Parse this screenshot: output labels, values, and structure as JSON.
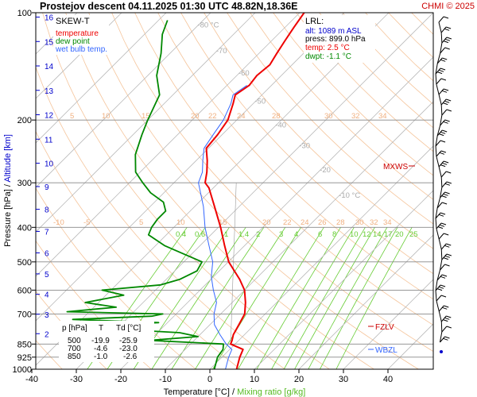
{
  "header": {
    "title": "Prostejov   descent   04.11.2025 01:30 UTC  48.82N,18.36E",
    "credit": "CHMI © 2025"
  },
  "legend": {
    "title": "SKEW-T",
    "items": [
      {
        "label": "temperature",
        "color": "#ee0000"
      },
      {
        "label": "dew point",
        "color": "#008800"
      },
      {
        "label": "wet bulb temp.",
        "color": "#3366ff"
      }
    ]
  },
  "lrl": {
    "title": "LRL:",
    "alt": "alt: 1089 m ASL",
    "press": "press: 899.0 hPa",
    "temp": "temp: 2.5 °C",
    "dwpt": "dwpt: -1.1 °C"
  },
  "markers": {
    "mxws": "MXWS",
    "fzlv": "FZLV",
    "wbzl": "WBZL"
  },
  "table": {
    "header": [
      "p [hPa]",
      "T",
      "Td [°C]"
    ],
    "rows": [
      [
        "500",
        "-19.9",
        "-25.9"
      ],
      [
        "700",
        "-4.6",
        "-23.0"
      ],
      [
        "850",
        "-1.0",
        "-2.6"
      ]
    ]
  },
  "axes": {
    "y_label_left": "Pressure [hPa]",
    "y_label_sep": " / ",
    "y_label_right": "Altitude [km]",
    "x_label_left": "Temperature [°C]",
    "x_label_sep": " / ",
    "x_label_right": "Mixing ratio [g/kg]"
  },
  "colors": {
    "temperature": "#ee0000",
    "dewpoint": "#008800",
    "wetbulb": "#3366ff",
    "isotherm": "#bbbbbb",
    "dry_adiabat": "#f5c49a",
    "mixing_ratio": "#66cc33",
    "altitude": "#0000cc",
    "wind": "#000000"
  },
  "chart_data": {
    "type": "line",
    "title": "Prostejov   descent   04.11.2025 01:30 UTC  48.82N,18.36E",
    "xlabel": "Temperature [°C] / Mixing ratio [g/kg]",
    "ylabel": "Pressure [hPa] / Altitude [km]",
    "xlim": [
      -40,
      50
    ],
    "ylim": [
      1000,
      100
    ],
    "y_scale": "log",
    "skew": "skew-T",
    "grid": true,
    "x_ticks": [
      -40,
      -30,
      -20,
      -10,
      0,
      10,
      20,
      30,
      40
    ],
    "x_tick_labels": [
      "-40",
      "-30",
      "-20",
      "-10",
      "0",
      "10",
      "20",
      "30",
      "40"
    ],
    "pressure_ticks": [
      100,
      200,
      300,
      400,
      500,
      600,
      700,
      850,
      925,
      1000
    ],
    "pressure_tick_labels": [
      "100",
      "200",
      "300",
      "400",
      "500",
      "600",
      "700",
      "850",
      "925",
      "1000"
    ],
    "altitude_ticks_km": [
      2,
      3,
      4,
      5,
      6,
      7,
      8,
      9,
      10,
      11,
      12,
      13,
      14,
      15,
      16
    ],
    "altitude_tick_labels": [
      "2",
      "3",
      "4",
      "5",
      "6",
      "7",
      "8",
      "9",
      "10",
      "11",
      "12",
      "13",
      "14",
      "15",
      "16"
    ],
    "isotherm_labels": [
      {
        "t": -80,
        "p": 110,
        "text": "-80 °C"
      },
      {
        "t": -70,
        "p": 130,
        "text": "-70"
      },
      {
        "t": -60,
        "p": 150,
        "text": "-60"
      },
      {
        "t": -50,
        "p": 180,
        "text": "-50"
      },
      {
        "t": -40,
        "p": 210,
        "text": "-40"
      },
      {
        "t": -30,
        "p": 240,
        "text": "-30"
      },
      {
        "t": -20,
        "p": 280,
        "text": "-20"
      },
      {
        "t": -10,
        "p": 330,
        "text": "-10 °C"
      }
    ],
    "dry_adiabat_labels_upper": [
      "5",
      "10",
      "15",
      "20",
      "22",
      "24",
      "28",
      "30",
      "32",
      "34"
    ],
    "dry_adiabat_labels_lower": [
      "-10",
      "-5",
      "5",
      "10",
      "15",
      "20",
      "22",
      "24",
      "26",
      "28",
      "30",
      "32",
      "34"
    ],
    "mixing_ratio_labels": [
      "0.4",
      "0.6",
      "1",
      "1.4",
      "2",
      "3",
      "4",
      "6",
      "8",
      "10",
      "12",
      "14",
      "17",
      "20",
      "25"
    ],
    "series": [
      {
        "name": "temperature",
        "points": [
          {
            "p": 1000,
            "t": 6.0
          },
          {
            "p": 925,
            "t": 4.0
          },
          {
            "p": 880,
            "t": 3.0
          },
          {
            "p": 850,
            "t": -1.0
          },
          {
            "p": 830,
            "t": -1.5
          },
          {
            "p": 800,
            "t": -2.5
          },
          {
            "p": 750,
            "t": -3.5
          },
          {
            "p": 700,
            "t": -4.6
          },
          {
            "p": 650,
            "t": -7.0
          },
          {
            "p": 600,
            "t": -10.0
          },
          {
            "p": 560,
            "t": -13.5
          },
          {
            "p": 500,
            "t": -19.9
          },
          {
            "p": 450,
            "t": -24.5
          },
          {
            "p": 400,
            "t": -29.5
          },
          {
            "p": 350,
            "t": -35.5
          },
          {
            "p": 310,
            "t": -41.0
          },
          {
            "p": 300,
            "t": -43.0
          },
          {
            "p": 280,
            "t": -45.0
          },
          {
            "p": 260,
            "t": -47.5
          },
          {
            "p": 240,
            "t": -50.5
          },
          {
            "p": 220,
            "t": -51.0
          },
          {
            "p": 200,
            "t": -52.0
          },
          {
            "p": 180,
            "t": -54.5
          },
          {
            "p": 170,
            "t": -56.0
          },
          {
            "p": 160,
            "t": -55.0
          },
          {
            "p": 150,
            "t": -55.5
          },
          {
            "p": 140,
            "t": -55.0
          },
          {
            "p": 130,
            "t": -56.0
          },
          {
            "p": 120,
            "t": -57.0
          },
          {
            "p": 110,
            "t": -58.0
          },
          {
            "p": 100,
            "t": -59.0
          }
        ]
      },
      {
        "name": "dew point",
        "points": [
          {
            "p": 1000,
            "t": 1.0
          },
          {
            "p": 925,
            "t": -1.0
          },
          {
            "p": 880,
            "t": -1.5
          },
          {
            "p": 850,
            "t": -2.6
          },
          {
            "p": 830,
            "t": -20.0
          },
          {
            "p": 810,
            "t": -10.0
          },
          {
            "p": 790,
            "t": -15.0
          },
          {
            "p": 760,
            "t": -40.0
          },
          {
            "p": 740,
            "t": -22.0
          },
          {
            "p": 725,
            "t": -42.0
          },
          {
            "p": 710,
            "t": -25.0
          },
          {
            "p": 700,
            "t": -23.0
          },
          {
            "p": 690,
            "t": -45.0
          },
          {
            "p": 670,
            "t": -35.0
          },
          {
            "p": 650,
            "t": -43.0
          },
          {
            "p": 620,
            "t": -36.0
          },
          {
            "p": 600,
            "t": -42.0
          },
          {
            "p": 580,
            "t": -30.0
          },
          {
            "p": 560,
            "t": -27.0
          },
          {
            "p": 530,
            "t": -25.0
          },
          {
            "p": 500,
            "t": -25.9
          },
          {
            "p": 470,
            "t": -33.0
          },
          {
            "p": 450,
            "t": -38.0
          },
          {
            "p": 420,
            "t": -44.0
          },
          {
            "p": 400,
            "t": -45.0
          },
          {
            "p": 380,
            "t": -45.5
          },
          {
            "p": 360,
            "t": -45.5
          },
          {
            "p": 340,
            "t": -48.0
          },
          {
            "p": 320,
            "t": -53.0
          },
          {
            "p": 300,
            "t": -57.0
          },
          {
            "p": 280,
            "t": -61.0
          },
          {
            "p": 250,
            "t": -65.0
          },
          {
            "p": 220,
            "t": -68.0
          },
          {
            "p": 200,
            "t": -70.0
          },
          {
            "p": 170,
            "t": -73.0
          },
          {
            "p": 150,
            "t": -78.0
          },
          {
            "p": 130,
            "t": -82.0
          },
          {
            "p": 115,
            "t": -86.0
          },
          {
            "p": 105,
            "t": -88.0
          }
        ]
      },
      {
        "name": "wet bulb temp.",
        "points": [
          {
            "p": 1000,
            "t": 3.5
          },
          {
            "p": 925,
            "t": 1.5
          },
          {
            "p": 880,
            "t": 0.5
          },
          {
            "p": 850,
            "t": -2.0
          },
          {
            "p": 800,
            "t": -5.5
          },
          {
            "p": 750,
            "t": -9.0
          },
          {
            "p": 700,
            "t": -11.5
          },
          {
            "p": 650,
            "t": -13.5
          },
          {
            "p": 600,
            "t": -17.0
          },
          {
            "p": 550,
            "t": -20.5
          },
          {
            "p": 500,
            "t": -23.5
          },
          {
            "p": 450,
            "t": -28.0
          },
          {
            "p": 400,
            "t": -33.0
          },
          {
            "p": 350,
            "t": -38.0
          },
          {
            "p": 300,
            "t": -44.5
          },
          {
            "p": 280,
            "t": -46.0
          },
          {
            "p": 260,
            "t": -48.5
          },
          {
            "p": 240,
            "t": -51.0
          },
          {
            "p": 220,
            "t": -52.0
          },
          {
            "p": 200,
            "t": -53.0
          },
          {
            "p": 180,
            "t": -55.0
          },
          {
            "p": 170,
            "t": -56.5
          },
          {
            "p": 160,
            "t": -55.5
          }
        ]
      }
    ]
  }
}
